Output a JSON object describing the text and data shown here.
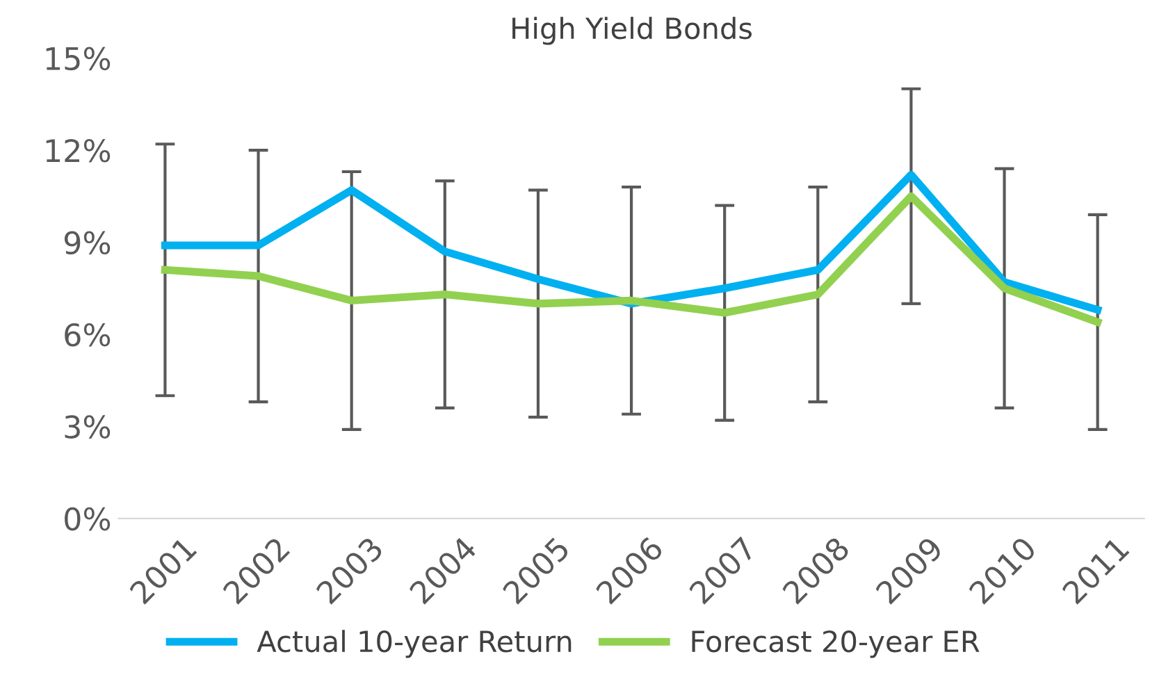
{
  "chart_data": {
    "type": "line",
    "title": "High Yield Bonds",
    "categories": [
      "2001",
      "2002",
      "2003",
      "2004",
      "2005",
      "2006",
      "2007",
      "2008",
      "2009",
      "2010",
      "2011"
    ],
    "series": [
      {
        "name": "Actual 10-year Return",
        "color": "#00b0f0",
        "values": [
          8.9,
          8.9,
          10.7,
          8.7,
          7.8,
          7.0,
          7.5,
          8.1,
          11.2,
          7.7,
          6.8
        ]
      },
      {
        "name": "Forecast 20-year ER",
        "color": "#92d050",
        "values": [
          8.1,
          7.9,
          7.1,
          7.3,
          7.0,
          7.1,
          6.7,
          7.3,
          10.5,
          7.5,
          6.4
        ],
        "errors": [
          4.1,
          4.1,
          4.2,
          3.7,
          3.7,
          3.7,
          3.5,
          3.5,
          3.5,
          3.9,
          3.5
        ]
      }
    ],
    "ylim": [
      0,
      15
    ],
    "yticks": [
      {
        "value": 0,
        "label": "0%"
      },
      {
        "value": 3,
        "label": "3%"
      },
      {
        "value": 6,
        "label": "6%"
      },
      {
        "value": 9,
        "label": "9%"
      },
      {
        "value": 12,
        "label": "12%"
      },
      {
        "value": 15,
        "label": "15%"
      }
    ],
    "grid": false,
    "legend": "bottom",
    "marker": "none",
    "line_style": "solid"
  }
}
